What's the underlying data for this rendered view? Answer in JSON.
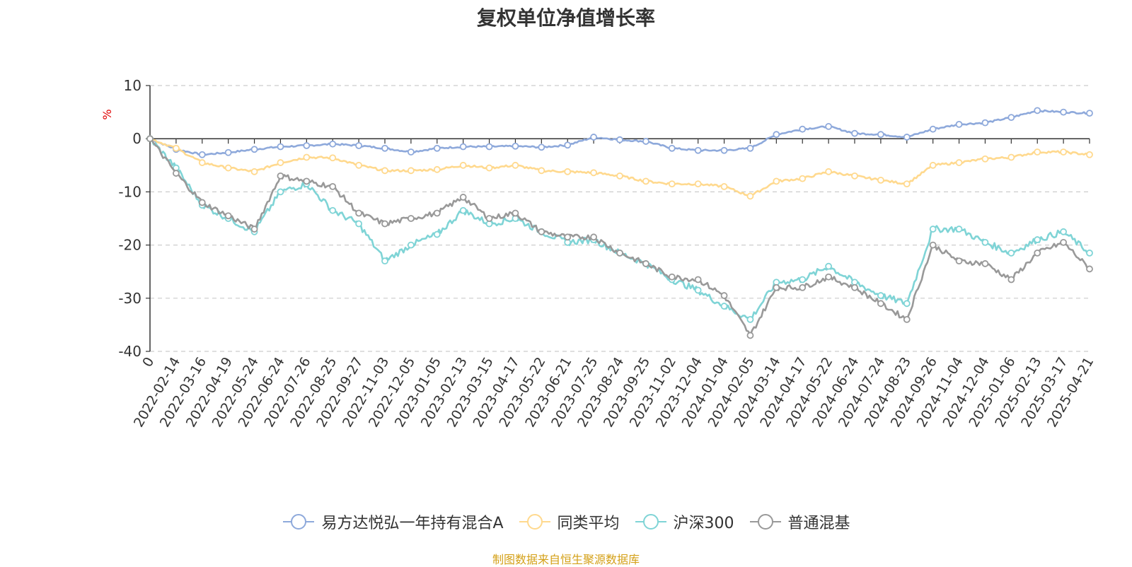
{
  "title": "复权单位净值增长率",
  "source_note": "制图数据来自恒生聚源数据库",
  "source_color": "#d4a017",
  "chart_data": {
    "type": "line",
    "title": "复权单位净值增长率",
    "ylabel": "%",
    "ylabel_color": "#e00000",
    "ylim": [
      -40,
      10
    ],
    "yticks": [
      10,
      0,
      -10,
      -20,
      -30,
      -40
    ],
    "grid": true,
    "legend_position": "bottom",
    "x_tick_labels": [
      "0",
      "2022-02-14",
      "2022-03-16",
      "2022-04-19",
      "2022-05-24",
      "2022-06-24",
      "2022-07-26",
      "2022-08-25",
      "2022-09-27",
      "2022-11-03",
      "2022-12-05",
      "2023-01-05",
      "2023-02-13",
      "2023-03-15",
      "2023-04-17",
      "2023-05-22",
      "2023-06-21",
      "2023-07-25",
      "2023-08-24",
      "2023-09-25",
      "2023-11-02",
      "2023-12-04",
      "2024-01-04",
      "2024-02-05",
      "2024-03-14",
      "2024-04-17",
      "2024-05-22",
      "2024-06-24",
      "2024-07-24",
      "2024-08-23",
      "2024-09-26",
      "2024-11-04",
      "2024-12-04",
      "2025-01-06",
      "2025-02-13",
      "2025-03-17",
      "2025-04-21"
    ],
    "series": [
      {
        "name": "易方达悦弘一年持有混合A",
        "color": "#8ea9db",
        "values": [
          0,
          -2,
          -3,
          -2.6,
          -2,
          -1.5,
          -1.3,
          -1,
          -1.3,
          -1.8,
          -2.5,
          -1.8,
          -1.5,
          -1.5,
          -1.4,
          -1.6,
          -1.2,
          0.3,
          -0.2,
          -0.5,
          -1.8,
          -2.2,
          -2.2,
          -1.8,
          0.8,
          1.8,
          2.3,
          1,
          0.8,
          0.3,
          1.8,
          2.7,
          3,
          4,
          5.3,
          5,
          4.8
        ]
      },
      {
        "name": "同类平均",
        "color": "#ffd98e",
        "values": [
          0,
          -1.8,
          -4.5,
          -5.5,
          -6.2,
          -4.5,
          -3.5,
          -3.6,
          -5,
          -6,
          -6,
          -5.8,
          -5,
          -5.5,
          -5,
          -6,
          -6.2,
          -6.4,
          -7,
          -8,
          -8.5,
          -8.5,
          -9,
          -10.8,
          -8,
          -7.5,
          -6.2,
          -7,
          -7.8,
          -8.5,
          -5,
          -4.5,
          -3.8,
          -3.5,
          -2.5,
          -2.5,
          -3
        ]
      },
      {
        "name": "沪深300",
        "color": "#7fd4d6",
        "values": [
          0,
          -5.5,
          -12.5,
          -15,
          -17.5,
          -10,
          -8.5,
          -13.5,
          -16,
          -23,
          -20,
          -18,
          -13.5,
          -16,
          -15,
          -17.5,
          -19.5,
          -19,
          -21.5,
          -23.5,
          -26.5,
          -28.5,
          -31.5,
          -34,
          -27,
          -26.5,
          -24,
          -27,
          -29.5,
          -31,
          -17,
          -17,
          -19.5,
          -21.5,
          -19,
          -17.5,
          -21.5
        ]
      },
      {
        "name": "普通混基",
        "color": "#999999",
        "values": [
          0,
          -6.5,
          -12,
          -14.5,
          -17,
          -7,
          -8,
          -9,
          -14,
          -16,
          -15,
          -14,
          -11,
          -15,
          -14,
          -17.5,
          -18.5,
          -18.5,
          -21.5,
          -23.5,
          -26,
          -26.5,
          -29.5,
          -37,
          -28,
          -28,
          -26,
          -28,
          -31,
          -34,
          -20,
          -23,
          -23.5,
          -26.5,
          -21.5,
          -19.5,
          -24.5
        ]
      }
    ]
  }
}
